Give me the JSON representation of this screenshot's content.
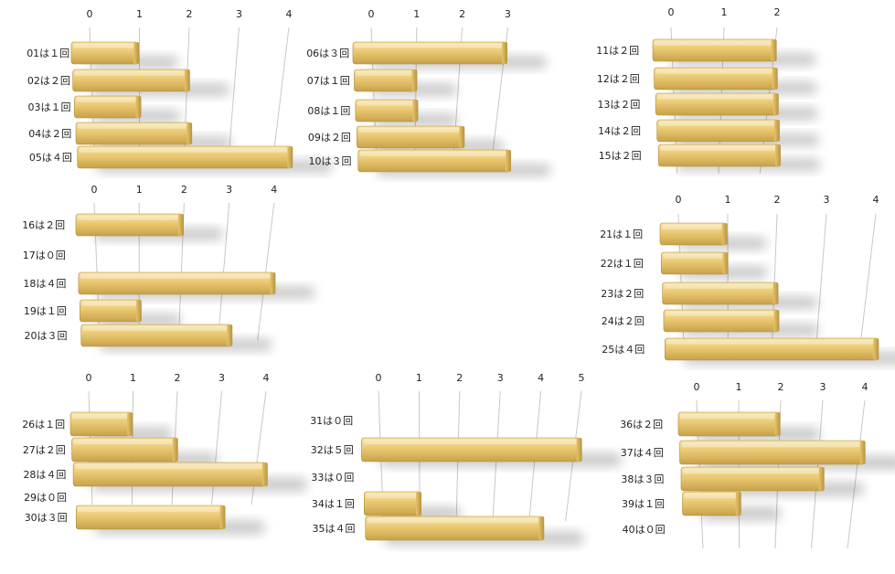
{
  "chart_data": [
    {
      "type": "bar",
      "orientation": "horizontal",
      "categories": [
        "01は１回",
        "02は２回",
        "03は１回",
        "04は２回",
        "05は４回"
      ],
      "values": [
        1,
        2,
        1,
        2,
        4
      ],
      "ticks": [
        0,
        1,
        2,
        3,
        4
      ],
      "xlim": [
        0,
        4
      ],
      "grid": true
    },
    {
      "type": "bar",
      "orientation": "horizontal",
      "categories": [
        "06は３回",
        "07は１回",
        "08は１回",
        "09は２回",
        "10は３回"
      ],
      "values": [
        3,
        1,
        1,
        2,
        3
      ],
      "ticks": [
        0,
        1,
        2,
        3
      ],
      "xlim": [
        0,
        3
      ],
      "grid": true
    },
    {
      "type": "bar",
      "orientation": "horizontal",
      "categories": [
        "11は２回",
        "12は２回",
        "13は２回",
        "14は２回",
        "15は２回"
      ],
      "values": [
        2,
        2,
        2,
        2,
        2
      ],
      "ticks": [
        0,
        1,
        2
      ],
      "xlim": [
        0,
        2
      ],
      "grid": true
    },
    {
      "type": "bar",
      "orientation": "horizontal",
      "categories": [
        "16は２回",
        "17は０回",
        "18は４回",
        "19は１回",
        "20は３回"
      ],
      "values": [
        2,
        0,
        4,
        1,
        3
      ],
      "ticks": [
        0,
        1,
        2,
        3,
        4
      ],
      "xlim": [
        0,
        4
      ],
      "grid": true
    },
    {
      "type": "bar",
      "orientation": "horizontal",
      "categories": [
        "21は１回",
        "22は１回",
        "23は２回",
        "24は２回",
        "25は４回"
      ],
      "values": [
        1,
        1,
        2,
        2,
        4
      ],
      "ticks": [
        0,
        1,
        2,
        3,
        4
      ],
      "xlim": [
        0,
        4
      ],
      "grid": true
    },
    {
      "type": "bar",
      "orientation": "horizontal",
      "categories": [
        "26は１回",
        "27は２回",
        "28は４回",
        "29は０回",
        "30は３回"
      ],
      "values": [
        1,
        2,
        4,
        0,
        3
      ],
      "ticks": [
        0,
        1,
        2,
        3,
        4
      ],
      "xlim": [
        0,
        4
      ],
      "grid": true
    },
    {
      "type": "bar",
      "orientation": "horizontal",
      "categories": [
        "31は０回",
        "32は５回",
        "33は０回",
        "34は１回",
        "35は４回"
      ],
      "values": [
        0,
        5,
        0,
        1,
        4
      ],
      "ticks": [
        0,
        1,
        2,
        3,
        4,
        5
      ],
      "xlim": [
        0,
        5
      ],
      "grid": true
    },
    {
      "type": "bar",
      "orientation": "horizontal",
      "categories": [
        "36は２回",
        "37は４回",
        "38は３回",
        "39は１回",
        "40は０回"
      ],
      "values": [
        2,
        4,
        3,
        1,
        0
      ],
      "ticks": [
        0,
        1,
        2,
        3,
        4
      ],
      "xlim": [
        0,
        4
      ],
      "grid": true
    }
  ],
  "colors": {
    "bar_top": "#f7e2a0",
    "bar_mid": "#e9c871",
    "bar_bottom": "#c7a14a",
    "bar_edge": "#b08c3a",
    "grid": "#c8c8c8",
    "shadow": "#000000"
  }
}
